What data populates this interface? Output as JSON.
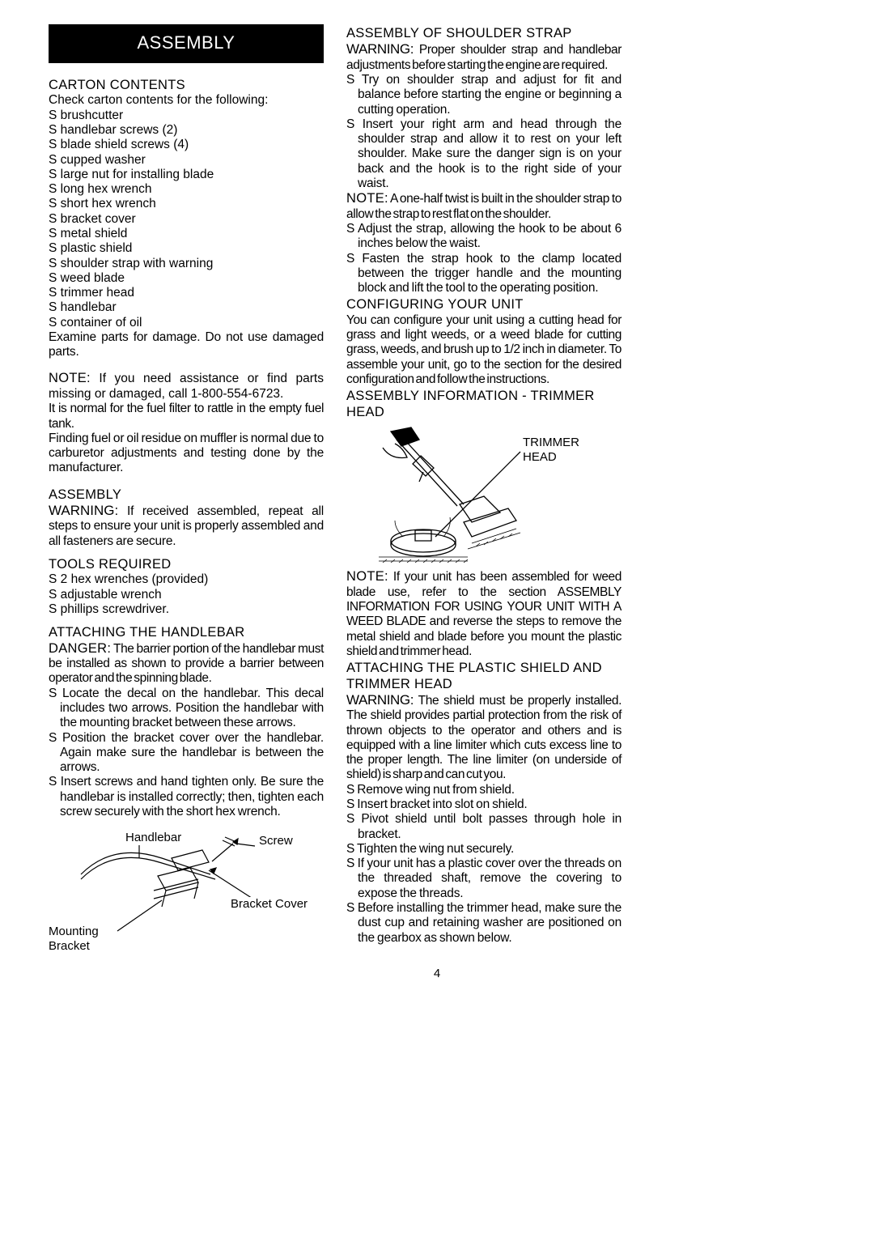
{
  "banner": "ASSEMBLY",
  "left": {
    "cartonHeading": "CARTON CONTENTS",
    "cartonIntro": "Check carton contents for the following:",
    "cartonItems": [
      "brushcutter",
      "handlebar screws (2)",
      "blade shield screws (4)",
      "cupped washer",
      "large nut for installing blade",
      "long hex wrench",
      "short hex wrench",
      "bracket cover",
      "metal shield",
      "plastic shield",
      "shoulder strap with warning",
      "weed blade",
      "trimmer head",
      "handlebar",
      "container of oil"
    ],
    "examineParts": "Examine parts for damage. Do not use damaged parts.",
    "noteLabel": "NOTE:",
    "note1": " If you need assistance or find parts missing or damaged, call 1-800-554-6723.",
    "fuelFilter": "It is normal for the fuel filter to rattle in the empty fuel tank.",
    "fuelOil": "Finding fuel or oil residue on muffler is normal due to carburetor adjustments and testing done by the manufacturer.",
    "assemblyHeading": "ASSEMBLY",
    "warningLabel": "WARNING:",
    "assemblyWarning": " If received assembled, repeat all steps to ensure your unit is properly assembled and all fasteners are secure.",
    "toolsHeading": "TOOLS REQUIRED",
    "toolsItems": [
      "2 hex wrenches (provided)",
      "adjustable wrench",
      "phillips screwdriver."
    ],
    "handlebarHeading": "ATTACHING THE HANDLEBAR",
    "dangerLabel": "DANGER:",
    "handlebarDanger": " The barrier portion of the handlebar must be installed as shown to provide a barrier between operator and the spinning blade.",
    "handlebarSteps": [
      "Locate the decal on the handlebar. This decal includes two arrows. Position the handlebar with the mounting bracket between these arrows.",
      "Position the bracket cover over the handlebar. Again make sure the handlebar is between the arrows.",
      "Insert screws and hand tighten only. Be sure the handlebar is installed correctly; then, tighten each screw securely with the short hex wrench."
    ],
    "diagramLabels": {
      "handlebar": "Handlebar",
      "screw": "Screw",
      "bracketCover": "Bracket Cover",
      "mountingBracket": "Mounting\nBracket"
    }
  },
  "right": {
    "shoulderHeading": "ASSEMBLY OF SHOULDER STRAP",
    "warningLabel": "WARNING:",
    "shoulderWarning": " Proper shoulder strap and handlebar adjustments before starting the engine are required.",
    "shoulderSteps1": [
      "Try on shoulder strap and adjust for fit and balance before starting the engine or beginning a cutting operation.",
      "Insert your right arm and head through the shoulder strap and allow it to rest on your left shoulder. Make sure the danger sign is on your back and the hook is to the right side of your waist."
    ],
    "noteLabel": "NOTE:",
    "shoulderNote": " A one-half twist is built in the shoulder strap to allow the strap to rest flat on the shoulder.",
    "shoulderSteps2": [
      "Adjust the strap, allowing the hook to be about 6 inches below the waist.",
      "Fasten the strap hook to the clamp located between the trigger handle and the mounting block and lift the tool to the operating position."
    ],
    "configHeading": "CONFIGURING YOUR UNIT",
    "configText": "You can configure your unit using a cutting head for grass and light weeds, or a weed blade for cutting grass, weeds, and brush up to 1/2 inch in diameter. To assemble your unit, go to the section for the desired configuration and follow the instructions.",
    "infoHeading": "ASSEMBLY INFORMATION - TRIMMER HEAD",
    "trimmerLabel": "TRIMMER\nHEAD",
    "note2": " If your unit has been assembled for weed blade use, refer to the section ASSEMBLY INFORMATION FOR USING YOUR UNIT WITH A WEED BLADE and reverse the steps to remove the metal shield and blade before you mount the plastic shield and trimmer head.",
    "plasticHeading": "ATTACHING THE PLASTIC SHIELD AND TRIMMER HEAD",
    "plasticWarning": " The shield must be properly installed. The shield provides partial protection from the risk of thrown objects to the operator and others and is equipped with a line limiter which cuts excess line to the proper length. The line limiter (on underside of shield) is sharp and can cut you.",
    "plasticSteps": [
      "Remove wing nut from shield.",
      "Insert bracket into slot on shield.",
      "Pivot shield until bolt passes through hole in bracket.",
      "Tighten the wing nut securely.",
      "If your unit has a plastic cover over the threads on the threaded shaft, remove the covering to expose the threads.",
      "Before installing the trimmer head, make sure the dust cup and retaining washer are positioned on the gearbox as shown below."
    ]
  },
  "pageNumber": "4"
}
